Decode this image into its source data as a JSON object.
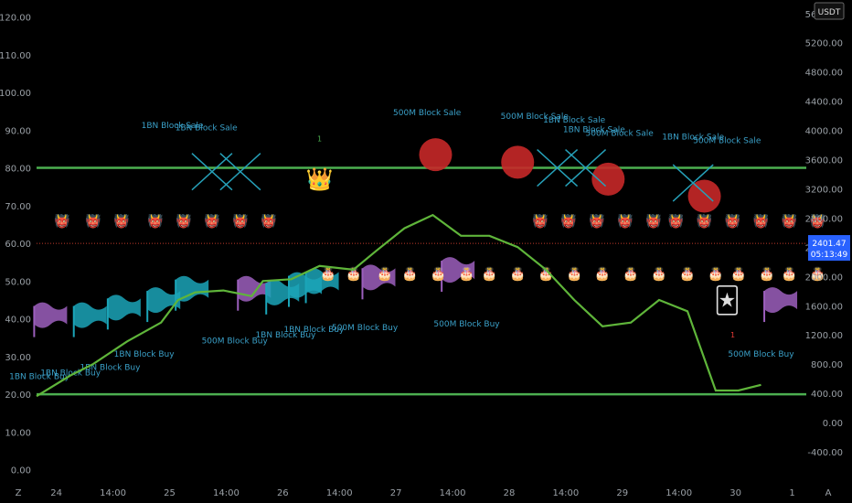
{
  "chart_data": {
    "type": "line",
    "currency": "USDT",
    "price_label": "2401.47",
    "countdown": "05:13:49",
    "left_axis": {
      "ticks": [
        "120.00",
        "110.00",
        "100.00",
        "90.00",
        "80.00",
        "70.00",
        "60.00",
        "50.00",
        "40.00",
        "30.00",
        "20.00",
        "10.00",
        "0.00"
      ],
      "range": [
        -3,
        124
      ]
    },
    "right_axis": {
      "ticks": [
        "5600.00",
        "5200.00",
        "4800.00",
        "4400.00",
        "4000.00",
        "3600.00",
        "3200.00",
        "2800.00",
        "2400.00",
        "2000.00",
        "1600.00",
        "1200.00",
        "800.00",
        "400.00",
        "0.00",
        "-400.00"
      ],
      "range": [
        -800,
        5760
      ]
    },
    "x_axis": {
      "ticks": [
        "24",
        "14:00",
        "25",
        "14:00",
        "26",
        "14:00",
        "27",
        "14:00",
        "28",
        "14:00",
        "29",
        "14:00",
        "30",
        "1"
      ],
      "range": [
        0,
        13.6
      ]
    },
    "hlines": [
      {
        "value": 80,
        "color": "#4caf50"
      },
      {
        "value": 20,
        "color": "#4caf50"
      },
      {
        "value": 60,
        "color": "#c0392b",
        "style": "dotted"
      }
    ],
    "series": [
      {
        "color": "#5fb53a",
        "x": [
          0.0,
          0.6,
          1.0,
          1.6,
          2.2,
          2.5,
          2.8,
          3.3,
          3.8,
          4.0,
          4.5,
          5.0,
          5.6,
          6.0,
          6.5,
          7.0,
          7.5,
          8.0,
          8.5,
          9.0,
          9.5,
          10.0,
          10.5,
          11.0,
          11.5,
          12.0,
          12.4,
          12.8
        ],
        "y": [
          19.5,
          25,
          28,
          34,
          39,
          45,
          47,
          47.5,
          46,
          50,
          50.5,
          54,
          53,
          58,
          64,
          67.5,
          62,
          62,
          59,
          53,
          45,
          38,
          39,
          45,
          42,
          21,
          21,
          22.5
        ]
      }
    ],
    "annotations": {
      "sale_labels": [
        {
          "text": "1BN Block Sale",
          "x": 2.4,
          "v": 90.5
        },
        {
          "text": "1BN Block Sale",
          "x": 3.0,
          "v": 90
        },
        {
          "text": "500M Block Sale",
          "x": 6.9,
          "v": 94
        },
        {
          "text": "500M Block Sale",
          "x": 8.8,
          "v": 93
        },
        {
          "text": "1BN Block Sale",
          "x": 9.5,
          "v": 92
        },
        {
          "text": "1BN Block Sale",
          "x": 9.85,
          "v": 89.5
        },
        {
          "text": "500M Block Sale",
          "x": 10.3,
          "v": 88.5
        },
        {
          "text": "1BN Block Sale",
          "x": 11.6,
          "v": 87.5
        },
        {
          "text": "500M Block Sale",
          "x": 12.2,
          "v": 86.5
        }
      ],
      "buy_labels": [
        {
          "text": "1BN Block Buy",
          "x": 0.05,
          "v": 24
        },
        {
          "text": "1BN Block Buy",
          "x": 0.6,
          "v": 25
        },
        {
          "text": "1BN Block Buy",
          "x": 1.3,
          "v": 26.5
        },
        {
          "text": "1BN Block Buy",
          "x": 1.9,
          "v": 30
        },
        {
          "text": "500M Block Buy",
          "x": 3.5,
          "v": 33.5
        },
        {
          "text": "1BN Block Buy",
          "x": 4.4,
          "v": 35
        },
        {
          "text": "1BN Block Buy",
          "x": 4.9,
          "v": 36.5
        },
        {
          "text": "500M Block Buy",
          "x": 5.8,
          "v": 37
        },
        {
          "text": "500M Block Buy",
          "x": 7.6,
          "v": 38
        },
        {
          "text": "500M Block Buy",
          "x": 12.8,
          "v": 30
        }
      ],
      "small_marks": [
        {
          "text": "1",
          "x": 5.0,
          "v": 87,
          "color": "#4caf50"
        },
        {
          "text": "1",
          "x": 12.3,
          "v": 35,
          "color": "#e53935"
        }
      ],
      "crosses": [
        {
          "x": 3.1,
          "v": 79
        },
        {
          "x": 3.6,
          "v": 79
        },
        {
          "x": 9.2,
          "v": 80
        },
        {
          "x": 9.7,
          "v": 80
        },
        {
          "x": 11.6,
          "v": 76
        }
      ],
      "circles": [
        {
          "x": 7.05,
          "v": 83.5
        },
        {
          "x": 8.5,
          "v": 81.5
        },
        {
          "x": 10.1,
          "v": 77
        },
        {
          "x": 11.8,
          "v": 72.5
        }
      ],
      "teal_flags": [
        {
          "x": 0.9,
          "v": 40
        },
        {
          "x": 1.5,
          "v": 42
        },
        {
          "x": 2.2,
          "v": 44
        },
        {
          "x": 2.7,
          "v": 47
        },
        {
          "x": 4.3,
          "v": 46
        },
        {
          "x": 4.7,
          "v": 48
        },
        {
          "x": 5.0,
          "v": 49
        }
      ],
      "purple_flags": [
        {
          "x": 0.2,
          "v": 40
        },
        {
          "x": 3.8,
          "v": 47
        },
        {
          "x": 6.0,
          "v": 50
        },
        {
          "x": 7.4,
          "v": 52
        },
        {
          "x": 13.1,
          "v": 44
        }
      ],
      "devils": {
        "v": 66,
        "x": [
          0.45,
          1.0,
          1.5,
          2.1,
          2.6,
          3.1,
          3.6,
          4.1,
          8.9,
          9.4,
          9.9,
          10.4,
          10.9,
          11.3,
          11.8,
          12.3,
          12.8,
          13.3,
          13.8
        ]
      },
      "cakes": {
        "v": 52,
        "x": [
          5.15,
          5.6,
          6.15,
          6.6,
          7.1,
          7.6,
          8.0,
          8.5,
          9.0,
          9.5,
          10.0,
          10.5,
          11.0,
          11.5,
          12.0,
          12.4,
          12.9,
          13.3,
          13.8
        ]
      },
      "crown": {
        "x": 5.0,
        "v": 77
      },
      "card": {
        "x": 12.2,
        "v": 45
      }
    }
  },
  "icons": {
    "devil": "👹",
    "cake": "🎂",
    "crown": "👑",
    "card": "🃏"
  },
  "corner": {
    "left": "Z",
    "right": "A"
  }
}
